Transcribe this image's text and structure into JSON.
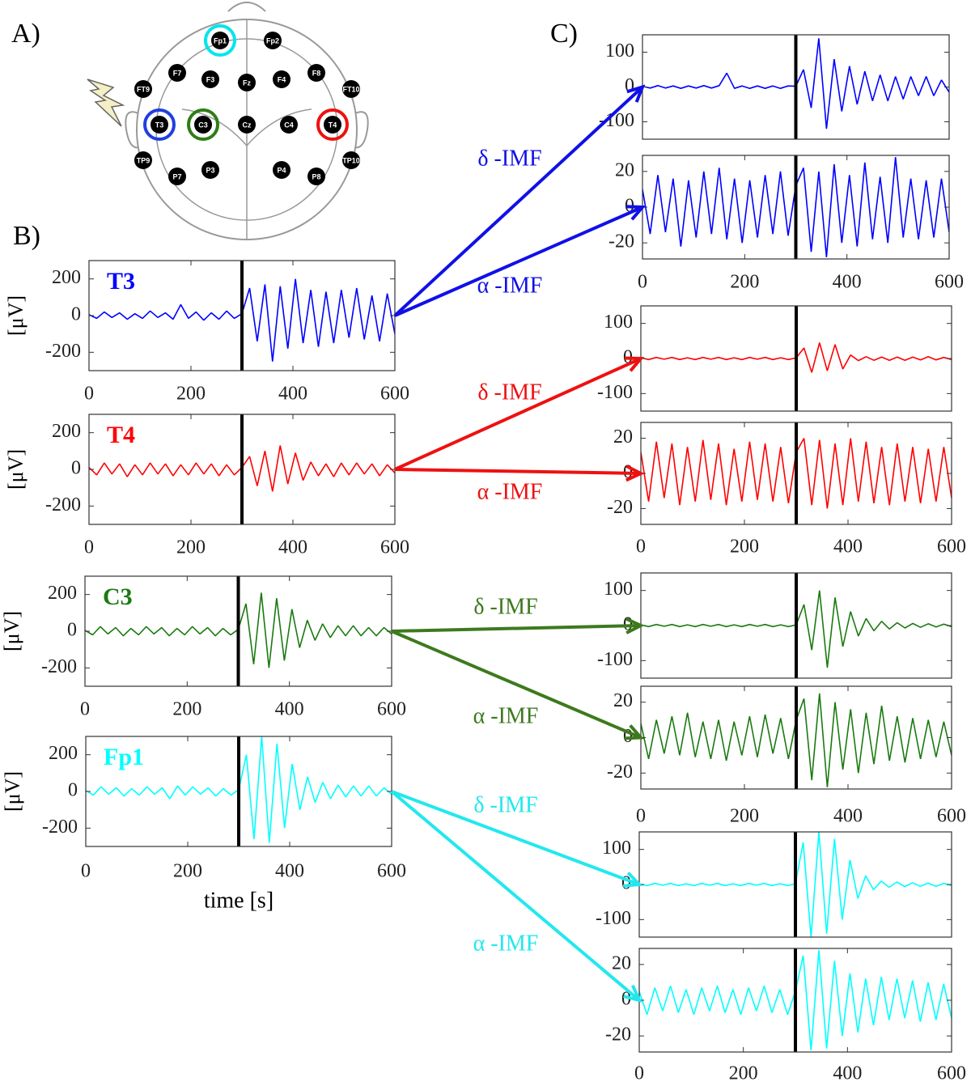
{
  "panel_labels": [
    "A)",
    "B)",
    "C)"
  ],
  "head": {
    "electrodes": [
      {
        "label": "Fp1",
        "ring": "#00e5ee"
      },
      {
        "label": "Fp2"
      },
      {
        "label": "F7"
      },
      {
        "label": "F3"
      },
      {
        "label": "Fz"
      },
      {
        "label": "F4"
      },
      {
        "label": "F8"
      },
      {
        "label": "FT9"
      },
      {
        "label": "FT10"
      },
      {
        "label": "T3",
        "ring": "#1f3fe0"
      },
      {
        "label": "C3",
        "ring": "#2e7d16"
      },
      {
        "label": "Cz"
      },
      {
        "label": "C4"
      },
      {
        "label": "T4",
        "ring": "#ee1111"
      },
      {
        "label": "TP9"
      },
      {
        "label": "TP10"
      },
      {
        "label": "P7"
      },
      {
        "label": "P3"
      },
      {
        "label": "P4"
      },
      {
        "label": "P8"
      }
    ]
  },
  "time_s": [
    0,
    15,
    30,
    45,
    60,
    75,
    90,
    105,
    120,
    135,
    150,
    165,
    180,
    195,
    210,
    225,
    240,
    255,
    270,
    285,
    300,
    315,
    330,
    345,
    360,
    375,
    390,
    405,
    420,
    435,
    450,
    465,
    480,
    495,
    510,
    525,
    540,
    555,
    570,
    585,
    600
  ],
  "chart_data": [
    {
      "type": "line",
      "label": "T3",
      "ylabel": "[μV]",
      "xlim": [
        0,
        600
      ],
      "ylim": [
        -300,
        300
      ],
      "xticks": [
        0,
        200,
        400,
        600
      ],
      "yticks": [
        200,
        0,
        -200
      ],
      "event_x": 300,
      "series": [
        {
          "color": "#0000ff",
          "values": [
            5,
            -15,
            20,
            -10,
            15,
            -20,
            10,
            -15,
            25,
            -10,
            15,
            -20,
            60,
            -15,
            20,
            -25,
            15,
            -20,
            25,
            -15,
            10,
            150,
            -140,
            170,
            -250,
            160,
            -180,
            200,
            -150,
            140,
            -170,
            130,
            -150,
            140,
            -120,
            150,
            -130,
            110,
            -140,
            120,
            -100
          ]
        }
      ]
    },
    {
      "type": "line",
      "label": "T4",
      "ylabel": "[μV]",
      "xlim": [
        0,
        600
      ],
      "ylim": [
        -300,
        300
      ],
      "xticks": [
        0,
        200,
        400,
        600
      ],
      "yticks": [
        200,
        0,
        -200
      ],
      "event_x": 300,
      "series": [
        {
          "color": "#ff0000",
          "values": [
            10,
            -30,
            35,
            -25,
            30,
            -40,
            25,
            -30,
            35,
            -25,
            30,
            -35,
            25,
            -30,
            35,
            -25,
            30,
            -35,
            25,
            -30,
            10,
            70,
            -90,
            100,
            -120,
            130,
            -80,
            90,
            -60,
            40,
            -35,
            30,
            -40,
            35,
            -30,
            35,
            -25,
            30,
            -35,
            25,
            -20
          ]
        }
      ]
    },
    {
      "type": "line",
      "label": "C3",
      "ylabel": "[μV]",
      "xlim": [
        0,
        600
      ],
      "ylim": [
        -300,
        300
      ],
      "xticks": [
        0,
        200,
        400,
        600
      ],
      "yticks": [
        200,
        0,
        -200
      ],
      "event_x": 300,
      "series": [
        {
          "color": "#1a7a10",
          "values": [
            5,
            -20,
            25,
            -15,
            20,
            -25,
            15,
            -20,
            25,
            -15,
            20,
            -25,
            15,
            -20,
            25,
            -15,
            20,
            -25,
            15,
            -20,
            10,
            150,
            -180,
            210,
            -200,
            180,
            -160,
            120,
            -90,
            60,
            -50,
            40,
            -35,
            30,
            -25,
            30,
            -25,
            20,
            -25,
            20,
            -15
          ]
        }
      ]
    },
    {
      "type": "line",
      "label": "Fp1",
      "ylabel": "[μV]",
      "xlabel": "time [s]",
      "xlim": [
        0,
        600
      ],
      "ylim": [
        -300,
        300
      ],
      "xticks": [
        0,
        200,
        400,
        600
      ],
      "yticks": [
        200,
        0,
        -200
      ],
      "event_x": 300,
      "series": [
        {
          "color": "#00ffff",
          "values": [
            5,
            -20,
            25,
            -15,
            20,
            -25,
            15,
            -20,
            25,
            -15,
            20,
            -40,
            30,
            -20,
            25,
            -15,
            20,
            -25,
            15,
            -20,
            10,
            200,
            -260,
            300,
            -280,
            260,
            -200,
            150,
            -100,
            80,
            -60,
            50,
            -40,
            35,
            -30,
            30,
            -25,
            30,
            -25,
            20,
            -15
          ]
        }
      ]
    },
    {
      "type": "line",
      "xlim": [
        0,
        600
      ],
      "ylim": [
        -150,
        150
      ],
      "yticks": [
        100,
        0,
        -100
      ],
      "event_x": 300,
      "series": [
        {
          "color": "#0000ff",
          "values": [
            2,
            -3,
            4,
            -3,
            3,
            -4,
            3,
            -3,
            4,
            -3,
            4,
            40,
            -4,
            3,
            -4,
            3,
            -4,
            3,
            -4,
            3,
            2,
            50,
            -60,
            140,
            -120,
            80,
            -70,
            60,
            -50,
            45,
            -40,
            35,
            -40,
            30,
            -35,
            30,
            -25,
            30,
            -25,
            20,
            -15
          ]
        }
      ]
    },
    {
      "type": "line",
      "xlim": [
        0,
        600
      ],
      "ylim": [
        -29,
        29
      ],
      "xticks": [
        0,
        200,
        400,
        600
      ],
      "yticks": [
        20,
        0,
        -20
      ],
      "event_x": 300,
      "series": [
        {
          "color": "#0000ff",
          "values": [
            10,
            -15,
            18,
            -14,
            16,
            -22,
            15,
            -17,
            20,
            -15,
            22,
            -18,
            16,
            -20,
            15,
            -17,
            18,
            -15,
            20,
            -16,
            12,
            22,
            -25,
            20,
            -28,
            24,
            -20,
            18,
            -22,
            25,
            -18,
            17,
            -20,
            28,
            -17,
            16,
            -18,
            15,
            -17,
            16,
            -14
          ]
        }
      ]
    },
    {
      "type": "line",
      "xlim": [
        0,
        600
      ],
      "ylim": [
        -150,
        150
      ],
      "yticks": [
        100,
        0,
        -100
      ],
      "event_x": 300,
      "series": [
        {
          "color": "#ff0000",
          "values": [
            2,
            -3,
            3,
            -2,
            3,
            -3,
            2,
            -3,
            3,
            -2,
            3,
            -3,
            2,
            -3,
            3,
            -2,
            3,
            -3,
            2,
            -3,
            2,
            30,
            -40,
            45,
            -35,
            40,
            -30,
            10,
            -6,
            5,
            -5,
            4,
            -5,
            4,
            -5,
            4,
            -4,
            5,
            -4,
            3,
            -3
          ]
        }
      ]
    },
    {
      "type": "line",
      "xlim": [
        0,
        600
      ],
      "ylim": [
        -29,
        29
      ],
      "xticks": [
        0,
        200,
        400,
        600
      ],
      "yticks": [
        20,
        0,
        -20
      ],
      "event_x": 300,
      "series": [
        {
          "color": "#ff0000",
          "values": [
            12,
            -16,
            18,
            -14,
            17,
            -18,
            15,
            -16,
            19,
            -15,
            17,
            -18,
            14,
            -16,
            18,
            -15,
            17,
            -16,
            15,
            -17,
            12,
            20,
            -18,
            19,
            -20,
            17,
            -18,
            20,
            -16,
            18,
            -17,
            15,
            -18,
            17,
            -16,
            15,
            -17,
            14,
            -16,
            15,
            -14
          ]
        }
      ]
    },
    {
      "type": "line",
      "xlim": [
        0,
        600
      ],
      "ylim": [
        -150,
        150
      ],
      "yticks": [
        100,
        0,
        -100
      ],
      "event_x": 300,
      "series": [
        {
          "color": "#1a7a10",
          "values": [
            2,
            -3,
            3,
            -2,
            3,
            -3,
            2,
            -3,
            3,
            -2,
            3,
            -3,
            2,
            -3,
            3,
            -2,
            3,
            -3,
            2,
            -3,
            2,
            60,
            -70,
            100,
            -120,
            80,
            -60,
            40,
            -30,
            20,
            -15,
            12,
            -10,
            8,
            -7,
            6,
            -5,
            5,
            -4,
            4,
            -3
          ]
        }
      ]
    },
    {
      "type": "line",
      "xlim": [
        0,
        600
      ],
      "ylim": [
        -29,
        29
      ],
      "xticks": [
        0,
        200,
        400,
        600
      ],
      "yticks": [
        20,
        0,
        -20
      ],
      "event_x": 300,
      "series": [
        {
          "color": "#1a7a10",
          "values": [
            8,
            -12,
            10,
            -9,
            12,
            -10,
            14,
            -11,
            9,
            -12,
            10,
            -13,
            9,
            -10,
            12,
            -11,
            13,
            -9,
            11,
            -12,
            10,
            22,
            -24,
            25,
            -28,
            20,
            -18,
            16,
            -20,
            14,
            -15,
            18,
            -13,
            12,
            -14,
            11,
            -12,
            10,
            -11,
            9,
            -10
          ]
        }
      ]
    },
    {
      "type": "line",
      "xlim": [
        0,
        600
      ],
      "ylim": [
        -150,
        150
      ],
      "yticks": [
        100,
        0,
        -100
      ],
      "event_x": 300,
      "series": [
        {
          "color": "#00ffff",
          "values": [
            2,
            -3,
            3,
            -2,
            3,
            -3,
            2,
            -3,
            3,
            -2,
            3,
            -3,
            2,
            -3,
            3,
            -2,
            3,
            -3,
            2,
            -3,
            2,
            120,
            -150,
            150,
            -140,
            130,
            -100,
            70,
            -40,
            25,
            -15,
            10,
            -8,
            7,
            -6,
            5,
            -5,
            4,
            -5,
            3,
            -3
          ]
        }
      ]
    },
    {
      "type": "line",
      "xlim": [
        0,
        600
      ],
      "ylim": [
        -29,
        29
      ],
      "xticks": [
        0,
        200,
        400,
        600
      ],
      "yticks": [
        20,
        0,
        -20
      ],
      "event_x": 300,
      "series": [
        {
          "color": "#00ffff",
          "values": [
            5,
            -8,
            7,
            -6,
            8,
            -7,
            6,
            -8,
            7,
            -6,
            8,
            -7,
            6,
            -8,
            7,
            -6,
            8,
            -7,
            6,
            -8,
            5,
            25,
            -28,
            28,
            -27,
            22,
            -20,
            15,
            -18,
            12,
            -14,
            13,
            -11,
            12,
            -10,
            11,
            -12,
            10,
            -11,
            9,
            -10
          ]
        }
      ]
    }
  ],
  "arrows": [
    {
      "label": "δ -IMF",
      "color": "#1010e8"
    },
    {
      "label": "α -IMF",
      "color": "#1010e8"
    },
    {
      "label": "δ -IMF",
      "color": "#ee1111"
    },
    {
      "label": "α -IMF",
      "color": "#ee1111"
    },
    {
      "label": "δ -IMF",
      "color": "#3d7a1e"
    },
    {
      "label": "α -IMF",
      "color": "#3d7a1e"
    },
    {
      "label": "δ -IMF",
      "color": "#22e8ee"
    },
    {
      "label": "α -IMF",
      "color": "#22e8ee"
    }
  ]
}
